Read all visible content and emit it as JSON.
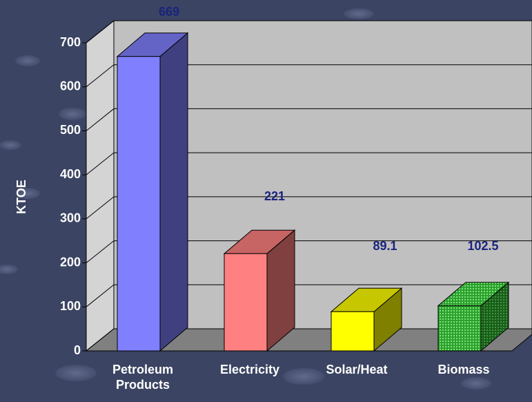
{
  "chart_data": {
    "type": "bar",
    "categories": [
      "Petroleum Products",
      "Electricity",
      "Solar/Heat",
      "Biomass"
    ],
    "values": [
      669,
      221,
      89.1,
      102.5
    ],
    "colors": [
      "#8080ff",
      "#ff8080",
      "#ffff00",
      "#33cc33"
    ],
    "y_label": "KTOE",
    "ylim": [
      0,
      700
    ],
    "yticks": [
      0,
      100,
      200,
      300,
      400,
      500,
      600,
      700
    ],
    "grid": true
  }
}
